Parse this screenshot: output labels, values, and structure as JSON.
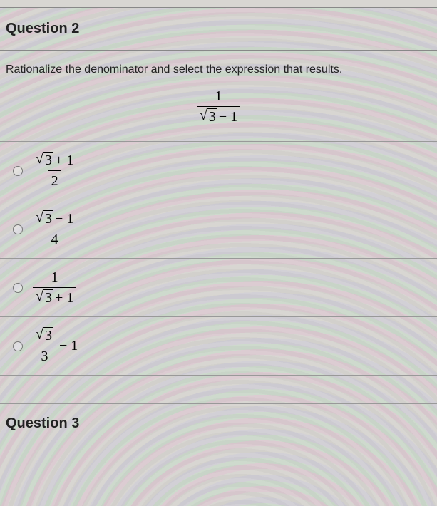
{
  "question2": {
    "title": "Question 2",
    "prompt": "Rationalize the denominator and select the expression that results.",
    "display": {
      "num": "1",
      "den_sqrt_arg": "3",
      "den_tail": " − 1"
    },
    "options": [
      {
        "id": "opt-a",
        "num_sqrt_arg": "3",
        "num_tail": " + 1",
        "den": "2",
        "layout": "frac_sqrt_num"
      },
      {
        "id": "opt-b",
        "num_sqrt_arg": "3",
        "num_tail": " − 1",
        "den": "4",
        "layout": "frac_sqrt_num"
      },
      {
        "id": "opt-c",
        "num": "1",
        "den_sqrt_arg": "3",
        "den_tail": " + 1",
        "layout": "frac_sqrt_den"
      },
      {
        "id": "opt-d",
        "num_sqrt_arg": "3",
        "den": "3",
        "tail": " − 1",
        "layout": "frac_then_tail"
      }
    ]
  },
  "question3": {
    "title": "Question 3"
  },
  "radical_symbol": "√"
}
